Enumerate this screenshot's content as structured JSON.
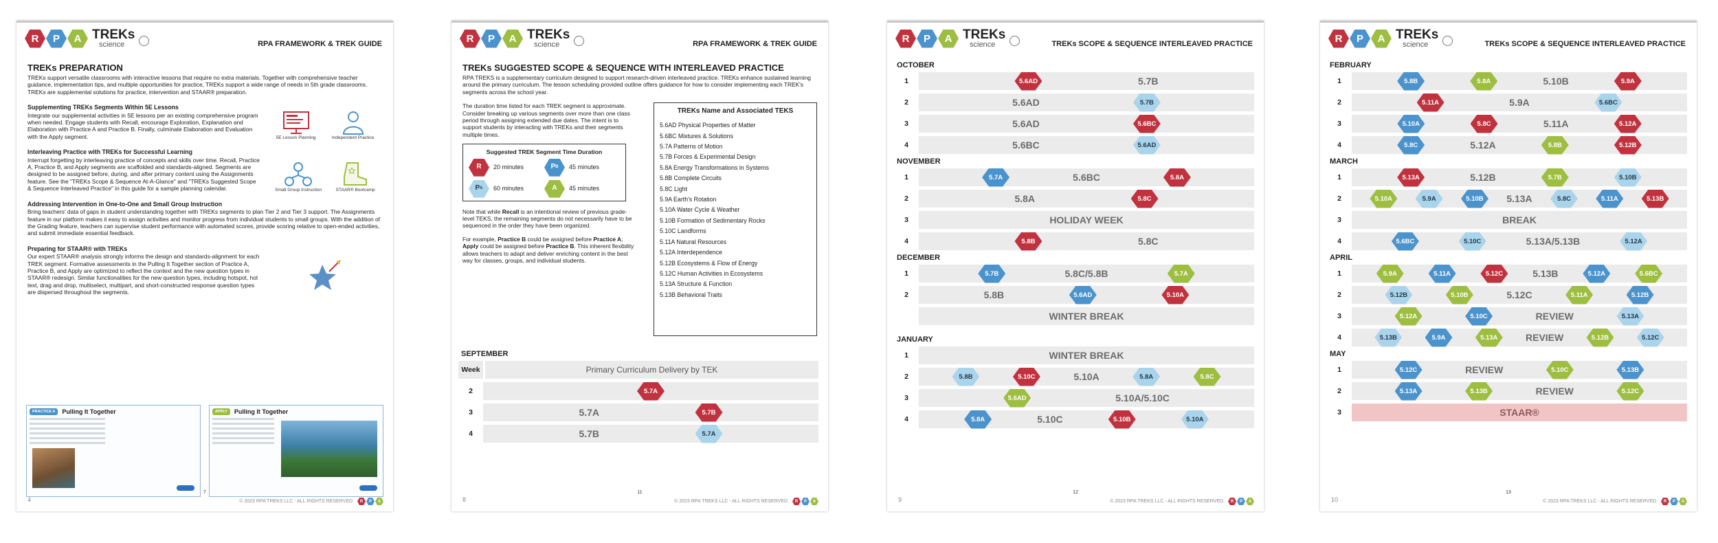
{
  "logo": {
    "letters": [
      "R",
      "P",
      "A"
    ],
    "name": "TREKs",
    "tagline": "science"
  },
  "copyright": "© 2023 RPA TREKS LLC - ALL RIGHTS RESERVED.",
  "tag_colors": {
    "R": "#c1323f",
    "PB": "#4b93cd",
    "PA": "#aad4eb",
    "A": "#9dbe40"
  },
  "pages": [
    {
      "number": "4",
      "center_number": "7",
      "header": "RPA FRAMEWORK & TREK GUIDE",
      "title": "TREKs PREPARATION",
      "intro": "TREKs support versatile classrooms with interactive lessons that require no extra materials. Together with comprehensive teacher guidance, implementation tips, and multiple opportunities for practice, TREKs support a wide range of needs in 5th grade classrooms. TREKs are supplemental solutions for practice, intervention and STAAR® preparation.",
      "sections": [
        {
          "heading": "Supplementing TREKs Segments Within 5E Lessons",
          "body": "Integrate our supplemental activities in 5E lessons per an existing comprehensive program when needed. Engage students with Recall, encourage Exploration, Explanation and Elaboration with Practice A and Practice B. Finally, culminate Elaboration and Evaluation with the Apply segment.",
          "icons": [
            "5E Lesson Planning",
            "Independent Practice"
          ]
        },
        {
          "heading": "Interleaving Practice with TREKs for Successful Learning",
          "body": "Interrupt forgetting by interleaving practice of concepts and skills over time. Recall, Practice A, Practice B, and Apply segments are scaffolded and standards-aligned. Segments are designed to be assigned before, during, and after primary content using the Assignments feature. See the \"TREKs Scope & Sequence At-A-Glance\" and \"TREKs Suggested Scope & Sequence Interleaved Practice\" in this guide for a sample planning calendar.",
          "icons": [
            "Small Group Instruction",
            "STAAR® Bootcamp"
          ]
        },
        {
          "heading": "Addressing Intervention in One-to-One and Small Group Instruction",
          "body": "Bring teachers' data of gaps in student understanding together with TREKs segments to plan Tier 2 and Tier 3 support. The Assignments feature in our platform makes it easy to assign activities and monitor progress from individual students to small groups. With the addition of the Grading feature, teachers can supervise student performance with automated scores, provide scoring relative to open-ended activities, and submit immediate essential feedback."
        },
        {
          "heading": "Preparing for STAAR® with TREKs",
          "body": "Our expert STAAR® analysis strongly informs the design and standards-alignment for each TREK segment. Formative assessments in the Pulling It Together section of Practice A, Practice B, and Apply are optimized to reflect the context and the new question types in STAAR® redesign. Similar functionalities for the new question types, including hotspot, hot text, drag and drop, multiselect, multipart, and short-constructed response question types are dispersed throughout the segments."
        }
      ],
      "cards": [
        {
          "tag": "PRACTICE A",
          "title": "Pulling It Together"
        },
        {
          "tag": "APPLY",
          "title": "Pulling It Together"
        }
      ]
    },
    {
      "number": "8",
      "center_number": "11",
      "header": "RPA FRAMEWORK & TREK GUIDE",
      "title": "TREKs SUGGESTED SCOPE & SEQUENCE WITH INTERLEAVED PRACTICE",
      "intro": "RPA TREKS is a supplementary curriculum designed to support research-driven interleaved practice. TREKs enhance sustained learning around the primary curriculum. The lesson scheduling provided outline offers guidance for how to consider implementing each TREK's segments across the school year.",
      "duration_note": "The duration time listed for each TREK segment is approximate. Consider breaking up various segments over more than one class period through assigning extended due dates. The intent is to support students by interacting with TREKs and their segments multiple times.",
      "duration": {
        "title": "Suggested TREK Segment Time Duration",
        "items": [
          {
            "k": "R",
            "letter": "R",
            "time": "20 minutes"
          },
          {
            "k": "PB",
            "letter": "P",
            "sub": "B",
            "time": "45 minutes"
          },
          {
            "k": "PA",
            "letter": "P",
            "sub": "A",
            "time": "60 minutes"
          },
          {
            "k": "A",
            "letter": "A",
            "time": "45 minutes"
          }
        ]
      },
      "notes": [
        [
          "Note that while ",
          {
            "b": "Recall"
          },
          " is an intentional review of previous grade-level TEKS, the remaining segments do not necessarily have to be sequenced in the order they have been organized."
        ],
        [
          "For example, ",
          {
            "b": "Practice B"
          },
          " could be assigned before ",
          {
            "b": "Practice A"
          },
          "; ",
          {
            "b": "Apply"
          },
          " could be assigned before ",
          {
            "b": "Practice B"
          },
          ". This inherent flexibility allows teachers to adapt and deliver enriching content in the best way for classes, groups, and individual students."
        ]
      ],
      "teks": {
        "title": "TREKs Name and Associated TEKS",
        "items": [
          "5.6AD Physical Properties of Matter",
          "5.6BC Mixtures & Solutions",
          "5.7A Patterns of Motion",
          "5.7B Forces & Experimental Design",
          "5.8A Energy Transformations in Systems",
          "5.8B Complete Circuits",
          "5.8C Light",
          "5.9A Earth's Rotation",
          "5.10A Water Cycle & Weather",
          "5.10B Formation of Sedimentary Rocks",
          "5.10C Landforms",
          "5.11A Natural Resources",
          "5.12A Interdependence",
          "5.12B Ecosystems & Flow of Energy",
          "5.12C Human Activities in Ecosystems",
          "5.13A Structure & Function",
          "5.13B Behavioral Traits"
        ]
      },
      "months": [
        {
          "name": "SEPTEMBER",
          "header": [
            "Week",
            "Primary Curriculum Delivery by TEK"
          ],
          "rows": [
            {
              "week": 2,
              "items": [
                {
                  "k": "R",
                  "t": "5.7A"
                }
              ]
            },
            {
              "week": 3,
              "items": [
                "5.7A",
                {
                  "k": "R",
                  "t": "5.7B"
                }
              ]
            },
            {
              "week": 4,
              "items": [
                "5.7B",
                {
                  "k": "PA",
                  "t": "5.7A"
                }
              ]
            }
          ]
        }
      ]
    },
    {
      "number": "9",
      "center_number": "12",
      "header": "TREKs SCOPE & SEQUENCE INTERLEAVED PRACTICE",
      "months": [
        {
          "name": "OCTOBER",
          "rows": [
            {
              "week": 1,
              "items": [
                {
                  "k": "R",
                  "t": "5.6AD"
                },
                "5.7B"
              ]
            },
            {
              "week": 2,
              "items": [
                "5.6AD",
                {
                  "k": "PA",
                  "t": "5.7B"
                }
              ]
            },
            {
              "week": 3,
              "items": [
                "5.6AD",
                {
                  "k": "R",
                  "t": "5.6BC"
                }
              ]
            },
            {
              "week": 4,
              "items": [
                "5.6BC",
                {
                  "k": "PA",
                  "t": "5.6AD"
                }
              ]
            }
          ]
        },
        {
          "name": "NOVEMBER",
          "rows": [
            {
              "week": 1,
              "items": [
                {
                  "k": "PB",
                  "t": "5.7A"
                },
                "5.6BC",
                {
                  "k": "R",
                  "t": "5.8A"
                }
              ]
            },
            {
              "week": 2,
              "items": [
                "5.8A",
                {
                  "k": "R",
                  "t": "5.8C"
                }
              ]
            },
            {
              "week": 3,
              "items": [
                "HOLIDAY WEEK"
              ]
            },
            {
              "week": 4,
              "items": [
                {
                  "k": "R",
                  "t": "5.8B"
                },
                "5.8C"
              ]
            }
          ]
        },
        {
          "name": "DECEMBER",
          "rows": [
            {
              "week": 1,
              "items": [
                {
                  "k": "PB",
                  "t": "5.7B"
                },
                "5.8C/5.8B",
                {
                  "k": "A",
                  "t": "5.7A"
                }
              ]
            },
            {
              "week": 2,
              "items": [
                "5.8B",
                {
                  "k": "PB",
                  "t": "5.6AD"
                },
                {
                  "k": "R",
                  "t": "5.10A"
                }
              ]
            },
            {
              "items": [
                "WINTER BREAK"
              ]
            }
          ]
        },
        {
          "name": "JANUARY",
          "rows": [
            {
              "week": 1,
              "items": [
                "WINTER BREAK"
              ]
            },
            {
              "week": 2,
              "items": [
                {
                  "k": "PA",
                  "t": "5.8B"
                },
                {
                  "k": "R",
                  "t": "5.10C"
                },
                "5.10A",
                {
                  "k": "PA",
                  "t": "5.8A"
                },
                {
                  "k": "A",
                  "t": "5.8C"
                }
              ]
            },
            {
              "week": 3,
              "items": [
                {
                  "k": "A",
                  "t": "5.6AD"
                },
                "5.10A/5.10C"
              ]
            },
            {
              "week": 4,
              "items": [
                {
                  "k": "PB",
                  "t": "5.8A"
                },
                "5.10C",
                {
                  "k": "R",
                  "t": "5.10B"
                },
                {
                  "k": "PA",
                  "t": "5.10A"
                }
              ]
            }
          ]
        }
      ]
    },
    {
      "number": "10",
      "center_number": "13",
      "header": "TREKs SCOPE & SEQUENCE INTERLEAVED PRACTICE",
      "months": [
        {
          "name": "FEBRUARY",
          "rows": [
            {
              "week": 1,
              "items": [
                {
                  "k": "PB",
                  "t": "5.8B"
                },
                {
                  "k": "A",
                  "t": "5.8A"
                },
                "5.10B",
                {
                  "k": "R",
                  "t": "5.9A"
                }
              ]
            },
            {
              "week": 2,
              "items": [
                {
                  "k": "R",
                  "t": "5.11A"
                },
                "5.9A",
                {
                  "k": "PA",
                  "t": "5.6BC"
                }
              ]
            },
            {
              "week": 3,
              "items": [
                {
                  "k": "PB",
                  "t": "5.10A"
                },
                {
                  "k": "R",
                  "t": "5.8C"
                },
                "5.11A",
                {
                  "k": "R",
                  "t": "5.12A"
                }
              ]
            },
            {
              "week": 4,
              "items": [
                {
                  "k": "PB",
                  "t": "5.8C"
                },
                "5.12A",
                {
                  "k": "A",
                  "t": "5.8B"
                },
                {
                  "k": "R",
                  "t": "5.12B"
                }
              ]
            }
          ]
        },
        {
          "name": "MARCH",
          "rows": [
            {
              "week": 1,
              "items": [
                {
                  "k": "R",
                  "t": "5.13A"
                },
                "5.12B",
                {
                  "k": "A",
                  "t": "5.7B"
                },
                {
                  "k": "PA",
                  "t": "5.10B"
                }
              ]
            },
            {
              "week": 2,
              "items": [
                {
                  "k": "A",
                  "t": "5.10A"
                },
                {
                  "k": "PA",
                  "t": "5.9A"
                },
                {
                  "k": "PB",
                  "t": "5.10B"
                },
                "5.13A",
                {
                  "k": "PA",
                  "t": "5.8C"
                },
                {
                  "k": "PB",
                  "t": "5.11A"
                },
                {
                  "k": "R",
                  "t": "5.13B"
                }
              ]
            },
            {
              "week": 3,
              "items": [
                "BREAK"
              ]
            },
            {
              "week": 4,
              "items": [
                {
                  "k": "PB",
                  "t": "5.6BC"
                },
                {
                  "k": "PA",
                  "t": "5.10C"
                },
                "5.13A/5.13B",
                {
                  "k": "PA",
                  "t": "5.12A"
                }
              ]
            }
          ]
        },
        {
          "name": "APRIL",
          "rows": [
            {
              "week": 1,
              "items": [
                {
                  "k": "A",
                  "t": "5.9A"
                },
                {
                  "k": "PB",
                  "t": "5.11A"
                },
                {
                  "k": "R",
                  "t": "5.12C"
                },
                "5.13B",
                {
                  "k": "PB",
                  "t": "5.12A"
                },
                {
                  "k": "A",
                  "t": "5.6BC"
                }
              ]
            },
            {
              "week": 2,
              "items": [
                {
                  "k": "PA",
                  "t": "5.12B"
                },
                {
                  "k": "A",
                  "t": "5.10B"
                },
                "5.12C",
                {
                  "k": "A",
                  "t": "5.11A"
                },
                {
                  "k": "PB",
                  "t": "5.12B"
                }
              ]
            },
            {
              "week": 3,
              "items": [
                {
                  "k": "A",
                  "t": "5.12A"
                },
                {
                  "k": "PB",
                  "t": "5.10C"
                },
                "REVIEW",
                {
                  "k": "PA",
                  "t": "5.13A"
                }
              ]
            },
            {
              "week": 4,
              "items": [
                {
                  "k": "PA",
                  "t": "5.13B"
                },
                {
                  "k": "PB",
                  "t": "5.9A"
                },
                {
                  "k": "A",
                  "t": "5.13A"
                },
                "REVIEW",
                {
                  "k": "A",
                  "t": "5.12B"
                },
                {
                  "k": "PA",
                  "t": "5.12C"
                }
              ]
            }
          ]
        },
        {
          "name": "MAY",
          "rows": [
            {
              "week": 1,
              "items": [
                {
                  "k": "PB",
                  "t": "5.12C"
                },
                "REVIEW",
                {
                  "k": "A",
                  "t": "5.10C"
                },
                {
                  "k": "PB",
                  "t": "5.13B"
                }
              ]
            },
            {
              "week": 2,
              "items": [
                {
                  "k": "PB",
                  "t": "5.13A"
                },
                {
                  "k": "A",
                  "t": "5.13B"
                },
                "REVIEW",
                {
                  "k": "A",
                  "t": "5.12C"
                }
              ]
            },
            {
              "week": 3,
              "items": [
                "STAAR®"
              ],
              "highlight": true
            }
          ]
        }
      ]
    }
  ]
}
